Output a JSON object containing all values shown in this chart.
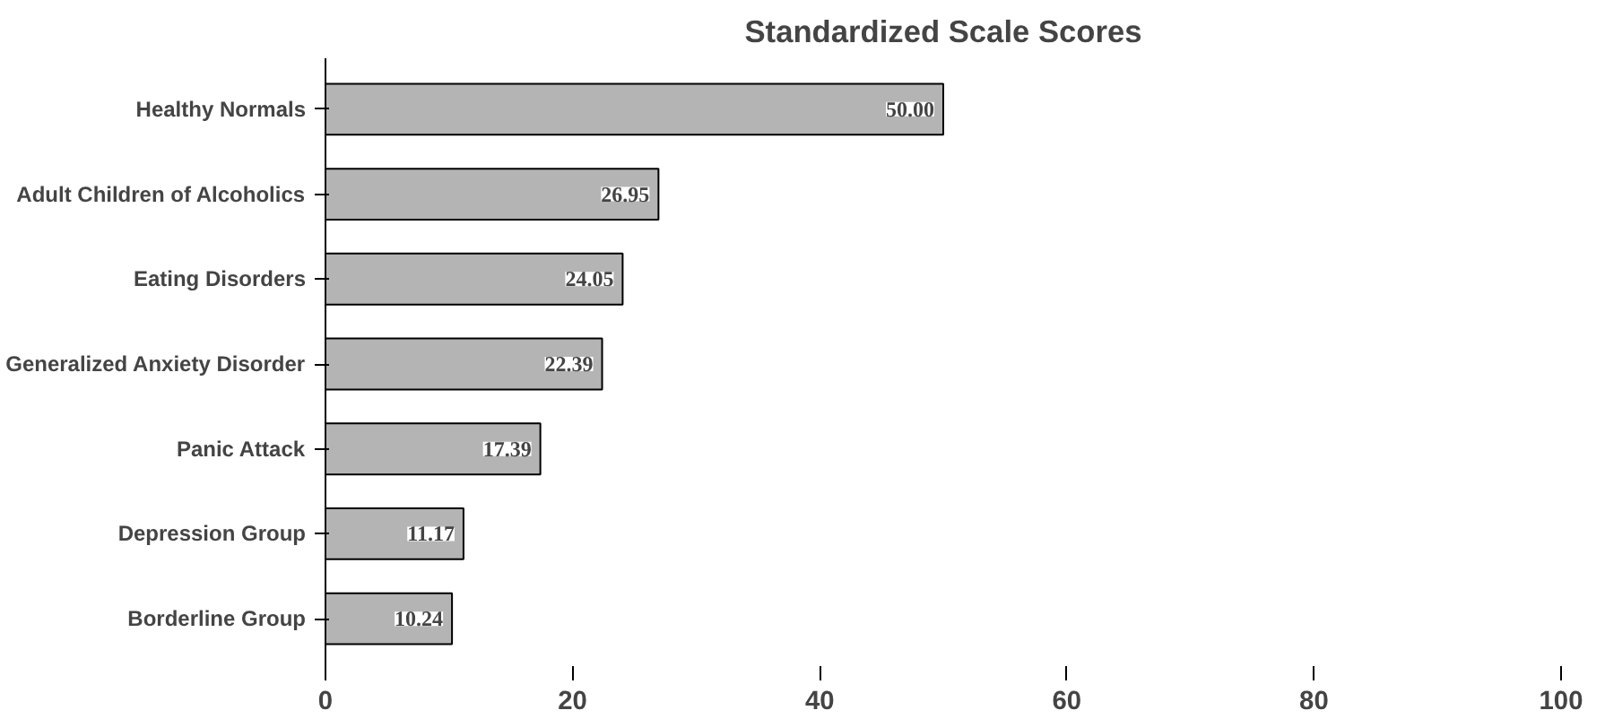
{
  "chart_data": {
    "type": "bar",
    "orientation": "horizontal",
    "title": "Standardized Scale Scores",
    "categories": [
      "Healthy Normals",
      "Adult Children of Alcoholics",
      "Eating Disorders",
      "Generalized Anxiety Disorder",
      "Panic Attack",
      "Depression Group",
      "Borderline Group"
    ],
    "values": [
      50.0,
      26.95,
      24.05,
      22.39,
      17.39,
      11.17,
      10.24
    ],
    "value_labels": [
      "50.00",
      "26.95",
      "24.05",
      "22.39",
      "17.39",
      "11.17",
      "10.24"
    ],
    "color": "#b4b4b4",
    "xlim": [
      0,
      100
    ],
    "xticks": [
      0,
      20,
      40,
      60,
      80,
      100
    ],
    "grid": false
  }
}
